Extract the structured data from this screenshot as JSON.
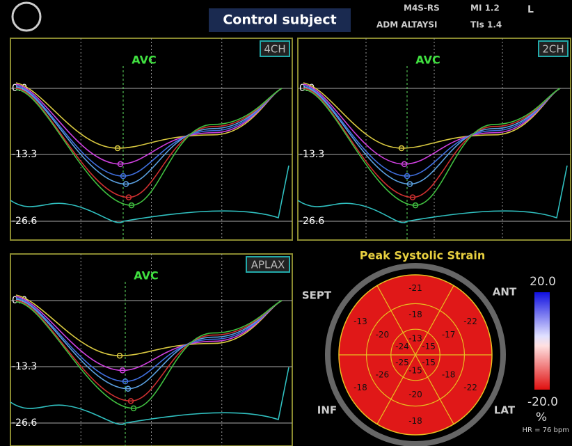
{
  "header": {
    "title": "Control subject",
    "info": [
      "M4S-RS",
      "ADM ALTAYSI",
      "MI 1.2",
      "TIs 1.4",
      "L"
    ]
  },
  "panels": [
    {
      "label": "4CH",
      "marker": "AVC",
      "ticks": [
        "0.0",
        "-13.3",
        "-26.6"
      ]
    },
    {
      "label": "2CH",
      "marker": "AVC",
      "ticks": [
        "0.0",
        "-13.3",
        "-26.6"
      ]
    },
    {
      "label": "APLAX",
      "marker": "AVC",
      "ticks": [
        "0.0",
        "-13.3",
        "-26.6"
      ]
    }
  ],
  "bullseye": {
    "title": "Peak Systolic Strain",
    "walls": [
      "SEPT",
      "ANT",
      "INF",
      "LAT"
    ],
    "outer": [
      -22,
      -21,
      -13,
      -18,
      -18,
      -22
    ],
    "middle": [
      -17,
      -18,
      -20,
      -26,
      -20,
      -18
    ],
    "inner": [
      -15,
      -13,
      -24,
      -25,
      -15,
      -15
    ],
    "scale_max": "20.0",
    "scale_min": "-20.0",
    "unit": "%",
    "hr": "HR = 76 bpm"
  }
}
